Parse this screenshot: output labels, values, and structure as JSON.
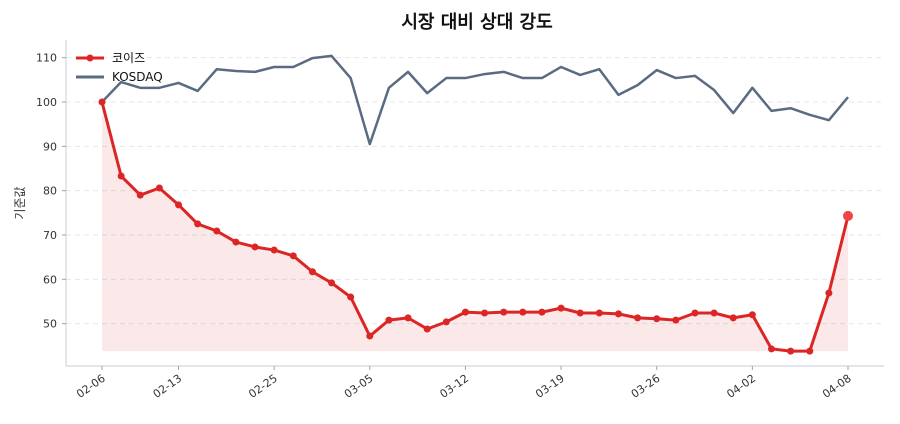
{
  "chart_data": {
    "type": "line",
    "title": "시장 대비 상대 강도",
    "xlabel": "",
    "ylabel": "기준값",
    "ylim": [
      40.5,
      114
    ],
    "yticks": [
      50,
      60,
      70,
      80,
      90,
      100,
      110
    ],
    "xtick_labels": [
      {
        "index": 0,
        "label": "02-06"
      },
      {
        "index": 4,
        "label": "02-13"
      },
      {
        "index": 9,
        "label": "02-25"
      },
      {
        "index": 14,
        "label": "03-05"
      },
      {
        "index": 19,
        "label": "03-12"
      },
      {
        "index": 24,
        "label": "03-19"
      },
      {
        "index": 29,
        "label": "03-26"
      },
      {
        "index": 34,
        "label": "04-02"
      },
      {
        "index": 39,
        "label": "04-08"
      }
    ],
    "grid": "horizontal dashed",
    "legend_position": "top-left",
    "series": [
      {
        "name": "코이즈",
        "color": "#dc2626",
        "markers": true,
        "fill": true,
        "values": [
          100,
          83.3,
          79.0,
          80.6,
          76.8,
          72.5,
          70.9,
          68.4,
          67.3,
          66.6,
          65.3,
          61.7,
          59.2,
          56.0,
          47.2,
          50.8,
          51.3,
          48.8,
          50.4,
          52.6,
          52.4,
          52.6,
          52.6,
          52.6,
          53.5,
          52.4,
          52.4,
          52.2,
          51.3,
          51.1,
          50.8,
          52.4,
          52.4,
          51.3,
          52.0,
          44.3,
          43.8,
          43.8,
          56.9,
          74.3
        ]
      },
      {
        "name": "KOSDAQ",
        "color": "#5b6b82",
        "markers": false,
        "fill": false,
        "values": [
          100,
          104.5,
          103.2,
          103.2,
          104.3,
          102.5,
          107.4,
          107.0,
          106.8,
          107.9,
          107.9,
          109.9,
          110.4,
          105.4,
          90.5,
          103.2,
          106.8,
          102.0,
          105.4,
          105.4,
          106.3,
          106.8,
          105.4,
          105.4,
          107.9,
          106.1,
          107.4,
          101.6,
          103.8,
          107.2,
          105.4,
          105.9,
          102.7,
          97.5,
          103.2,
          98.0,
          98.6,
          97.1,
          95.9,
          101.1
        ]
      }
    ]
  }
}
